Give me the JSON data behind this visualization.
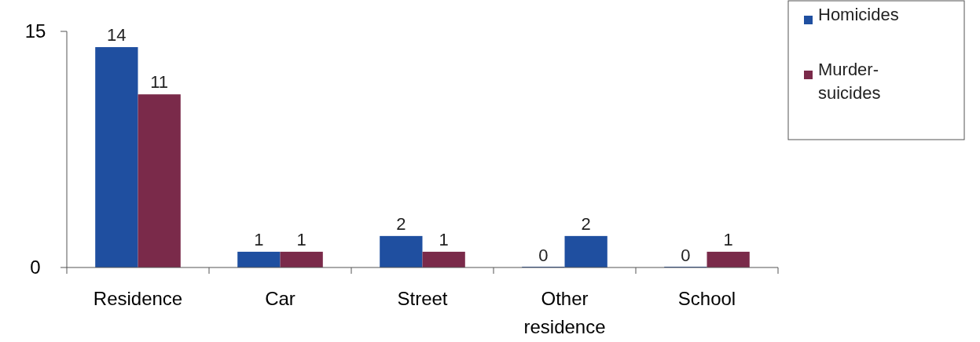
{
  "chart_data": {
    "type": "bar",
    "categories": [
      "Residence",
      "Car",
      "Street",
      "Other residence",
      "School"
    ],
    "series": [
      {
        "name": "Homicides",
        "color": "#1f4fa0",
        "values": [
          14,
          1,
          2,
          0,
          0
        ]
      },
      {
        "name": "Murder-suicides",
        "color": "#7a2a4a",
        "colors": [
          "#7a2a4a",
          "#7a2a4a",
          "#7a2a4a",
          "#1f4fa0",
          "#7a2a4a"
        ],
        "values": [
          11,
          1,
          1,
          2,
          1
        ]
      }
    ],
    "ylim": [
      0,
      15
    ],
    "yticks": [
      0,
      15
    ],
    "data_labels": true,
    "legend": "top right",
    "grid": false
  }
}
